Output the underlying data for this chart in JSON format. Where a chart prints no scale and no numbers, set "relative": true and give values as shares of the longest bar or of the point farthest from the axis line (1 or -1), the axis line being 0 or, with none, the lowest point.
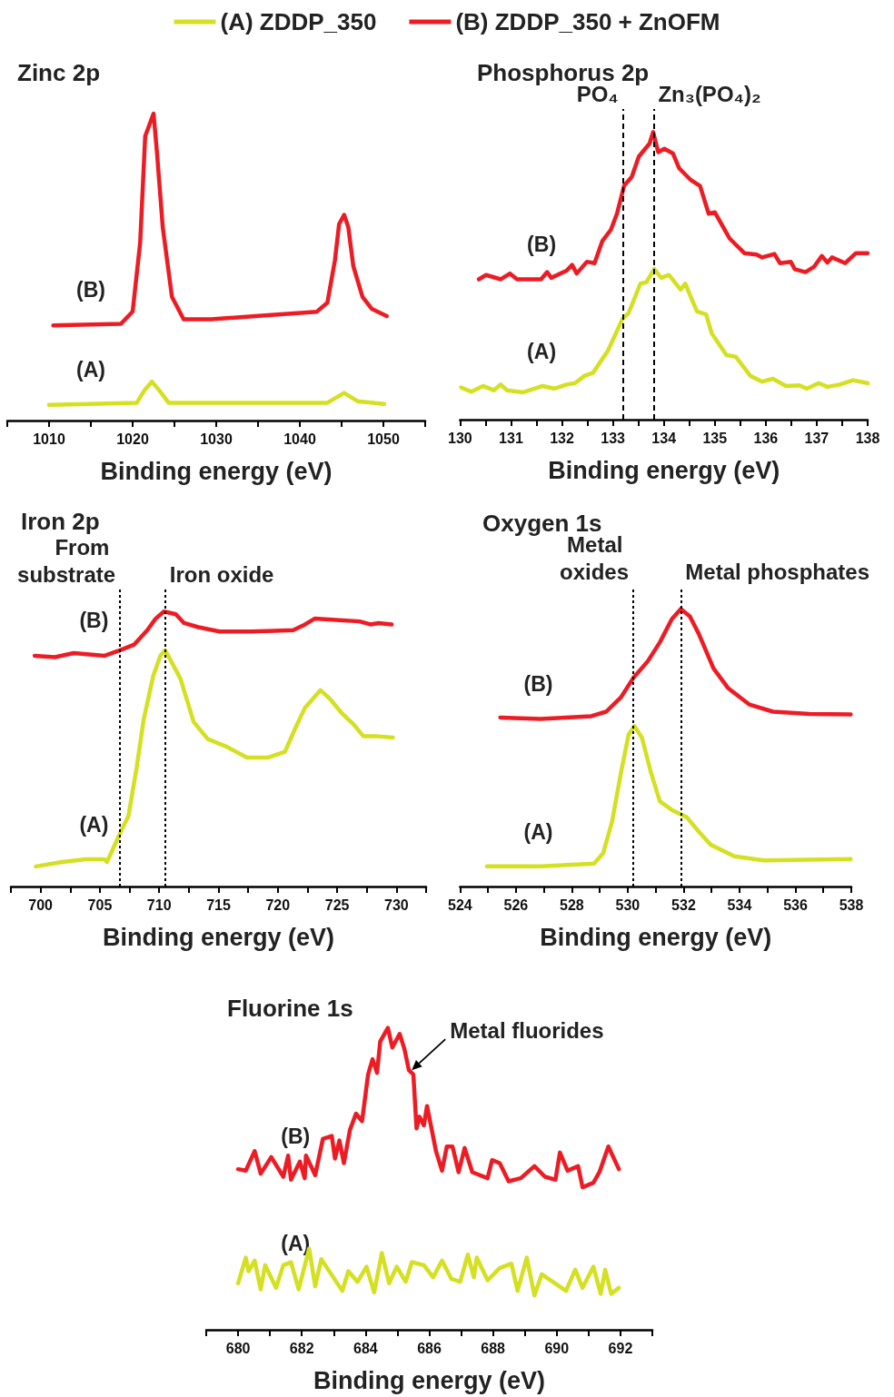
{
  "chart_data": [
    {
      "type": "line",
      "title": "Zinc 2p",
      "xlabel": "Binding energy (eV)",
      "relative": true,
      "legend": "top",
      "xlim": [
        1005,
        1055
      ],
      "xticks": [
        {
          "value": 1005,
          "label": null
        },
        1010,
        {
          "value": 1015,
          "label": null
        },
        1020,
        {
          "value": 1025,
          "label": null
        },
        1030,
        {
          "value": 1035,
          "label": null
        },
        1040,
        {
          "value": 1045,
          "label": null
        },
        1050,
        {
          "value": 1055,
          "label": null
        }
      ],
      "series": [
        {
          "name": "(A) ZDDP_350",
          "color": "#d4e021",
          "x": [
            1010.0,
            1020.5,
            1021.4,
            1022.3,
            1023.2,
            1024.3,
            1043.3,
            1045.3,
            1046.9,
            1050.1
          ],
          "values": [
            0.051,
            0.058,
            0.098,
            0.127,
            0.098,
            0.058,
            0.058,
            0.09,
            0.063,
            0.054
          ]
        },
        {
          "name": "(B) ZDDP_350 + ZnOFM",
          "color": "#ed1c24",
          "x": [
            1010.5,
            1018.6,
            1020.0,
            1020.9,
            1021.5,
            1022.5,
            1022.9,
            1023.6,
            1024.7,
            1026.1,
            1029.4,
            1036.6,
            1042.0,
            1043.3,
            1044.2,
            1044.7,
            1045.3,
            1045.8,
            1046.4,
            1047.5,
            1048.6,
            1050.4
          ],
          "values": [
            0.31,
            0.315,
            0.355,
            0.58,
            0.926,
            1.0,
            0.877,
            0.63,
            0.403,
            0.33,
            0.33,
            0.344,
            0.354,
            0.384,
            0.522,
            0.64,
            0.67,
            0.63,
            0.503,
            0.403,
            0.364,
            0.34
          ]
        }
      ],
      "annotations": [
        "(A)",
        "(B)"
      ]
    },
    {
      "type": "line",
      "title": "Phosphorus 2p",
      "xlabel": "Binding energy (eV)",
      "relative": true,
      "xlim": [
        130,
        138
      ],
      "xticks": [
        130,
        {
          "value": 130.5,
          "label": null
        },
        131,
        {
          "value": 131.5,
          "label": null
        },
        132,
        {
          "value": 132.5,
          "label": null
        },
        133,
        {
          "value": 133.5,
          "label": null
        },
        134,
        {
          "value": 134.5,
          "label": null
        },
        135,
        {
          "value": 135.5,
          "label": null
        },
        136,
        {
          "value": 136.5,
          "label": null
        },
        137,
        {
          "value": 137.5,
          "label": null
        },
        138
      ],
      "series": [
        {
          "color": "#d4e021",
          "x": [
            130.02,
            130.22,
            130.45,
            130.66,
            130.8,
            130.92,
            131.24,
            131.62,
            131.85,
            132.09,
            132.26,
            132.44,
            132.61,
            132.9,
            133.19,
            133.31,
            133.54,
            133.66,
            133.81,
            133.95,
            134.1,
            134.33,
            134.42,
            134.65,
            134.83,
            134.94,
            135.23,
            135.41,
            135.7,
            135.93,
            136.14,
            136.4,
            136.66,
            136.81,
            137.04,
            137.21,
            137.45,
            137.71,
            138.0
          ],
          "values": [
            0.112,
            0.097,
            0.117,
            0.102,
            0.122,
            0.102,
            0.095,
            0.117,
            0.108,
            0.122,
            0.127,
            0.152,
            0.163,
            0.239,
            0.351,
            0.371,
            0.473,
            0.478,
            0.524,
            0.493,
            0.503,
            0.452,
            0.473,
            0.376,
            0.366,
            0.3,
            0.224,
            0.219,
            0.152,
            0.132,
            0.142,
            0.117,
            0.119,
            0.108,
            0.127,
            0.114,
            0.122,
            0.137,
            0.127
          ]
        },
        {
          "color": "#ed1c24",
          "x": [
            130.37,
            130.51,
            130.8,
            130.98,
            131.12,
            131.59,
            131.71,
            131.79,
            132.09,
            132.2,
            132.29,
            132.49,
            132.64,
            132.79,
            132.96,
            133.08,
            133.22,
            133.37,
            133.51,
            133.72,
            133.79,
            133.89,
            134.01,
            134.18,
            134.3,
            134.53,
            134.71,
            134.88,
            135.0,
            135.29,
            135.58,
            135.82,
            135.93,
            136.17,
            136.28,
            136.49,
            136.57,
            136.78,
            136.95,
            137.1,
            137.21,
            137.3,
            137.56,
            137.77,
            138.0
          ],
          "values": [
            0.488,
            0.503,
            0.488,
            0.508,
            0.488,
            0.488,
            0.513,
            0.493,
            0.518,
            0.538,
            0.508,
            0.549,
            0.544,
            0.62,
            0.66,
            0.716,
            0.813,
            0.844,
            0.915,
            0.96,
            1.0,
            0.93,
            0.942,
            0.925,
            0.874,
            0.833,
            0.813,
            0.716,
            0.721,
            0.63,
            0.579,
            0.574,
            0.564,
            0.576,
            0.544,
            0.549,
            0.523,
            0.513,
            0.532,
            0.569,
            0.546,
            0.564,
            0.544,
            0.579,
            0.579
          ]
        }
      ],
      "ref_lines": [
        {
          "axis": "x",
          "value": 133.2,
          "label": "PO₄",
          "color": "#000000",
          "line_style": "dashed"
        },
        {
          "axis": "x",
          "value": 133.8,
          "label": "Zn₃(PO₄)₂",
          "color": "#000000",
          "line_style": "dashed"
        }
      ],
      "annotations": [
        "(A)",
        "(B)"
      ]
    },
    {
      "type": "line",
      "title": "Iron 2p",
      "xlabel": "Binding energy (eV)",
      "relative": true,
      "xlim": [
        697.5,
        732.5
      ],
      "xticks": [
        {
          "value": 697.5,
          "label": null
        },
        700,
        {
          "value": 702.5,
          "label": null
        },
        705,
        {
          "value": 707.5,
          "label": null
        },
        710,
        {
          "value": 712.5,
          "label": null
        },
        715,
        {
          "value": 717.5,
          "label": null
        },
        720,
        {
          "value": 722.5,
          "label": null
        },
        725,
        {
          "value": 727.5,
          "label": null
        },
        730,
        {
          "value": 732.5,
          "label": null
        }
      ],
      "series": [
        {
          "color": "#d4e021",
          "x": [
            699.6,
            701.8,
            703.8,
            705.4,
            705.6,
            706.8,
            707.4,
            708.1,
            708.7,
            709.5,
            710.1,
            710.5,
            710.9,
            711.8,
            712.9,
            714.1,
            715.6,
            717.4,
            719.2,
            720.6,
            721.5,
            722.3,
            723.6,
            724.4,
            725.4,
            726.4,
            727.2,
            728.2,
            729.7
          ],
          "values": [
            0.073,
            0.089,
            0.099,
            0.099,
            0.089,
            0.203,
            0.255,
            0.432,
            0.609,
            0.766,
            0.839,
            0.859,
            0.828,
            0.755,
            0.599,
            0.536,
            0.51,
            0.469,
            0.469,
            0.49,
            0.578,
            0.651,
            0.714,
            0.682,
            0.63,
            0.589,
            0.547,
            0.547,
            0.542
          ]
        },
        {
          "color": "#ed1c24",
          "x": [
            699.5,
            701.2,
            702.8,
            705.4,
            706.7,
            707.9,
            709.0,
            709.7,
            710.4,
            711.4,
            712.1,
            713.3,
            715.1,
            717.7,
            719.7,
            721.3,
            722.3,
            723.1,
            724.9,
            726.9,
            727.8,
            728.5,
            729.6
          ],
          "values": [
            0.839,
            0.834,
            0.849,
            0.839,
            0.859,
            0.88,
            0.932,
            0.974,
            1.0,
            0.99,
            0.958,
            0.943,
            0.927,
            0.927,
            0.93,
            0.932,
            0.953,
            0.974,
            0.969,
            0.964,
            0.953,
            0.958,
            0.953
          ]
        }
      ],
      "ref_lines": [
        {
          "axis": "x",
          "value": 706.7,
          "label": "From substrate",
          "color": "#000000",
          "line_style": "dotted"
        },
        {
          "axis": "x",
          "value": 710.5,
          "label": "Iron oxide",
          "color": "#000000",
          "line_style": "dotted"
        }
      ],
      "annotations": [
        "(A)",
        "(B)"
      ]
    },
    {
      "type": "line",
      "title": "Oxygen 1s",
      "xlabel": "Binding energy (eV)",
      "relative": true,
      "xlim": [
        524,
        538
      ],
      "xticks": [
        524,
        {
          "value": 525,
          "label": null
        },
        526,
        {
          "value": 527,
          "label": null
        },
        528,
        {
          "value": 529,
          "label": null
        },
        530,
        {
          "value": 531,
          "label": null
        },
        532,
        {
          "value": 533,
          "label": null
        },
        534,
        {
          "value": 535,
          "label": null
        },
        536,
        {
          "value": 537,
          "label": null
        },
        538
      ],
      "series": [
        {
          "color": "#d4e021",
          "x": [
            524.96,
            526.88,
            528.8,
            529.12,
            529.44,
            529.76,
            530.03,
            530.24,
            530.51,
            530.83,
            531.15,
            531.58,
            532.11,
            532.54,
            532.96,
            533.82,
            534.88,
            537.98
          ],
          "values": [
            0.073,
            0.073,
            0.083,
            0.12,
            0.234,
            0.411,
            0.547,
            0.578,
            0.536,
            0.411,
            0.307,
            0.276,
            0.25,
            0.198,
            0.151,
            0.109,
            0.094,
            0.099
          ]
        },
        {
          "color": "#ed1c24",
          "x": [
            525.44,
            526.88,
            528.7,
            529.23,
            529.76,
            530.19,
            530.72,
            531.15,
            531.58,
            531.9,
            532.22,
            532.54,
            533.07,
            533.6,
            534.35,
            535.2,
            536.49,
            537.98
          ],
          "values": [
            0.609,
            0.604,
            0.614,
            0.63,
            0.682,
            0.75,
            0.812,
            0.88,
            0.964,
            1.0,
            0.974,
            0.911,
            0.786,
            0.714,
            0.656,
            0.63,
            0.622,
            0.62
          ]
        }
      ],
      "ref_lines": [
        {
          "axis": "x",
          "value": 530.2,
          "label": "Metal oxides",
          "color": "#000000",
          "line_style": "dotted"
        },
        {
          "axis": "x",
          "value": 531.9,
          "label": "Metal phosphates",
          "color": "#000000",
          "line_style": "dotted"
        }
      ],
      "annotations": [
        "(A)",
        "(B)"
      ]
    },
    {
      "type": "line",
      "title": "Fluorine 1s",
      "xlabel": "Binding energy (eV)",
      "relative": true,
      "xlim": [
        679,
        693
      ],
      "xticks": [
        {
          "value": 679,
          "label": null
        },
        680,
        {
          "value": 681,
          "label": null
        },
        682,
        {
          "value": 683,
          "label": null
        },
        684,
        {
          "value": 685,
          "label": null
        },
        686,
        {
          "value": 687,
          "label": null
        },
        688,
        {
          "value": 689,
          "label": null
        },
        690,
        {
          "value": 691,
          "label": null
        },
        692,
        {
          "value": 693,
          "label": null
        }
      ],
      "series": [
        {
          "color": "#d4e021",
          "x": [
            680.0,
            680.24,
            680.33,
            680.52,
            680.71,
            680.85,
            681.19,
            681.42,
            681.66,
            681.9,
            682.23,
            682.42,
            682.61,
            683.27,
            683.46,
            683.75,
            684.03,
            684.27,
            684.51,
            684.74,
            684.98,
            685.26,
            685.45,
            685.83,
            686.12,
            686.4,
            686.69,
            686.97,
            687.21,
            687.4,
            687.49,
            687.83,
            688.21,
            688.58,
            688.77,
            689.06,
            689.3,
            689.53,
            690.01,
            690.29,
            690.58,
            690.81,
            691.15,
            691.38,
            691.52,
            691.71,
            691.95
          ],
          "values": [
            0.154,
            0.239,
            0.194,
            0.229,
            0.134,
            0.214,
            0.139,
            0.214,
            0.224,
            0.134,
            0.269,
            0.144,
            0.234,
            0.129,
            0.194,
            0.159,
            0.209,
            0.124,
            0.254,
            0.154,
            0.209,
            0.159,
            0.224,
            0.214,
            0.174,
            0.229,
            0.169,
            0.159,
            0.249,
            0.174,
            0.239,
            0.164,
            0.204,
            0.219,
            0.129,
            0.239,
            0.114,
            0.184,
            0.149,
            0.129,
            0.199,
            0.139,
            0.209,
            0.119,
            0.199,
            0.119,
            0.139
          ]
        },
        {
          "color": "#ed1c24",
          "x": [
            680.0,
            680.24,
            680.52,
            680.71,
            681.04,
            681.42,
            681.57,
            681.66,
            681.94,
            682.09,
            682.13,
            682.42,
            682.66,
            682.94,
            683.04,
            683.18,
            683.32,
            683.51,
            683.7,
            683.89,
            684.08,
            684.22,
            684.36,
            684.46,
            684.7,
            684.84,
            685.07,
            685.22,
            685.36,
            685.5,
            685.6,
            685.69,
            685.83,
            685.93,
            686.21,
            686.4,
            686.55,
            686.73,
            686.92,
            687.11,
            687.35,
            687.83,
            687.97,
            688.21,
            688.49,
            688.87,
            689.3,
            689.63,
            689.96,
            690.1,
            690.34,
            690.67,
            690.81,
            691.15,
            691.34,
            691.62,
            691.95
          ],
          "values": [
            0.532,
            0.527,
            0.592,
            0.517,
            0.572,
            0.507,
            0.577,
            0.497,
            0.557,
            0.502,
            0.577,
            0.512,
            0.632,
            0.642,
            0.567,
            0.627,
            0.552,
            0.662,
            0.716,
            0.691,
            0.846,
            0.896,
            0.851,
            0.955,
            1.0,
            0.935,
            0.98,
            0.93,
            0.86,
            0.846,
            0.667,
            0.706,
            0.677,
            0.741,
            0.592,
            0.527,
            0.607,
            0.607,
            0.522,
            0.602,
            0.522,
            0.502,
            0.562,
            0.552,
            0.492,
            0.502,
            0.542,
            0.507,
            0.497,
            0.587,
            0.527,
            0.542,
            0.472,
            0.487,
            0.522,
            0.607,
            0.532
          ]
        }
      ],
      "annotations": [
        {
          "text": "Metal fluorides",
          "x": 685.45,
          "y": 0.86
        },
        "(A)",
        "(B)"
      ]
    }
  ]
}
